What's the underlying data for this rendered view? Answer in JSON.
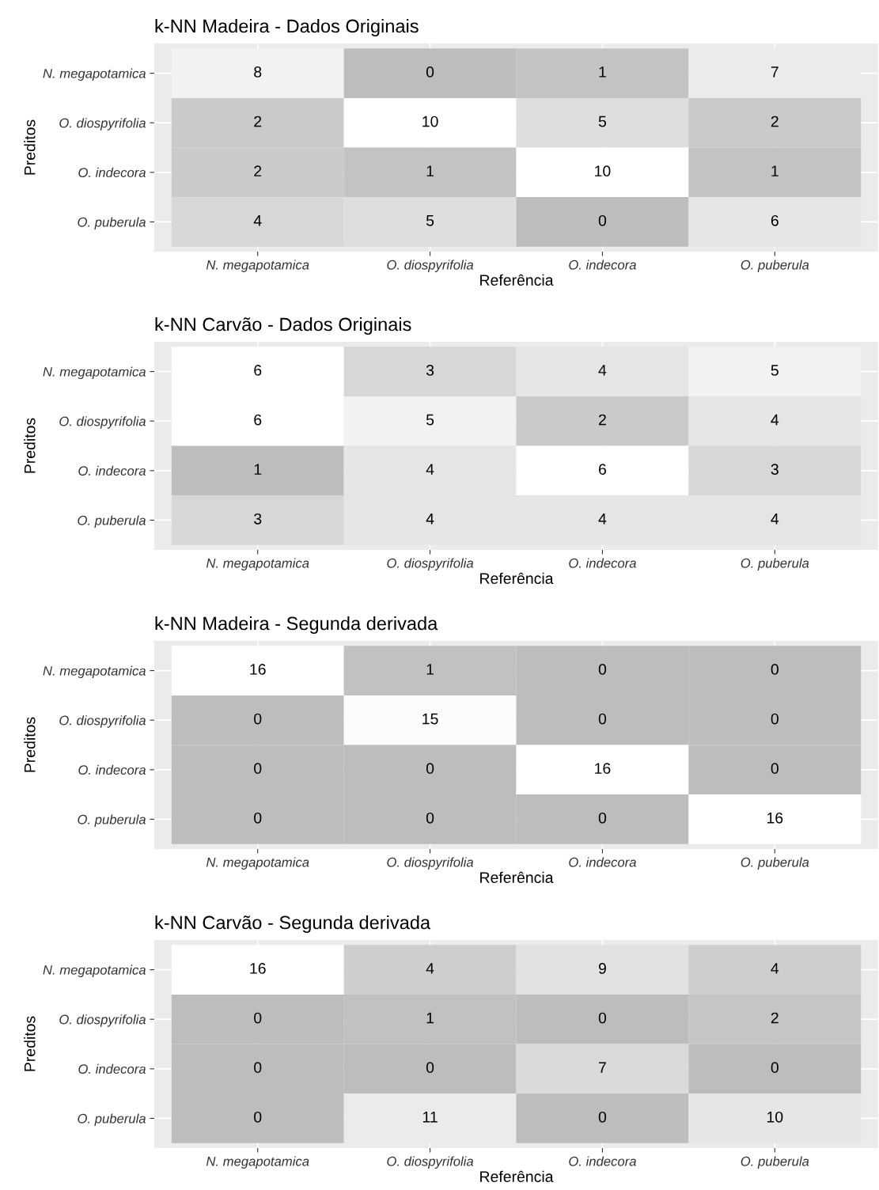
{
  "chart_data": [
    {
      "type": "heatmap",
      "title": "k-NN Madeira - Dados Originais",
      "xlabel": "Referência",
      "ylabel": "Preditos",
      "categories": [
        "N. megapotamica",
        "O. diospyrifolia",
        "O. indecora",
        "O. puberula"
      ],
      "y_categories": [
        "N. megapotamica",
        "O. diospyrifolia",
        "O. indecora",
        "O. puberula"
      ],
      "cells": [
        [
          8,
          0,
          1,
          7
        ],
        [
          2,
          10,
          5,
          2
        ],
        [
          2,
          1,
          10,
          1
        ],
        [
          4,
          5,
          0,
          6
        ]
      ],
      "data_labels": true,
      "grid": true
    },
    {
      "type": "heatmap",
      "title": "k-NN Carvão - Dados Originais",
      "xlabel": "Referência",
      "ylabel": "Preditos",
      "categories": [
        "N. megapotamica",
        "O. diospyrifolia",
        "O. indecora",
        "O. puberula"
      ],
      "y_categories": [
        "N. megapotamica",
        "O. diospyrifolia",
        "O. indecora",
        "O. puberula"
      ],
      "cells": [
        [
          6,
          3,
          4,
          5
        ],
        [
          6,
          5,
          2,
          4
        ],
        [
          1,
          4,
          6,
          3
        ],
        [
          3,
          4,
          4,
          4
        ]
      ],
      "data_labels": true,
      "grid": true
    },
    {
      "type": "heatmap",
      "title": "k-NN Madeira - Segunda derivada",
      "xlabel": "Referência",
      "ylabel": "Preditos",
      "categories": [
        "N. megapotamica",
        "O. diospyrifolia",
        "O. indecora",
        "O. puberula"
      ],
      "y_categories": [
        "N. megapotamica",
        "O. diospyrifolia",
        "O. indecora",
        "O. puberula"
      ],
      "cells": [
        [
          16,
          1,
          0,
          0
        ],
        [
          0,
          15,
          0,
          0
        ],
        [
          0,
          0,
          16,
          0
        ],
        [
          0,
          0,
          0,
          16
        ]
      ],
      "data_labels": true,
      "grid": true
    },
    {
      "type": "heatmap",
      "title": "k-NN Carvão - Segunda derivada",
      "xlabel": "Referência",
      "ylabel": "Preditos",
      "categories": [
        "N. megapotamica",
        "O. diospyrifolia",
        "O. indecora",
        "O. puberula"
      ],
      "y_categories": [
        "N. megapotamica",
        "O. diospyrifolia",
        "O. indecora",
        "O. puberula"
      ],
      "cells": [
        [
          16,
          4,
          9,
          4
        ],
        [
          0,
          1,
          0,
          2
        ],
        [
          0,
          0,
          7,
          0
        ],
        [
          0,
          11,
          0,
          10
        ]
      ],
      "data_labels": true,
      "grid": true
    }
  ]
}
